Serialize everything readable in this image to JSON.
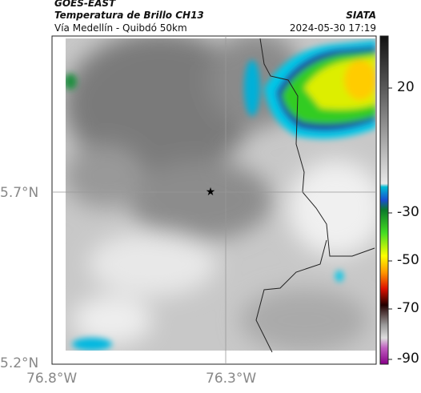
{
  "header": {
    "source": "GOES-EAST",
    "title": "Temperatura de Brillo CH13",
    "org": "SIATA",
    "route": "Vía Medellín - Quibdó 50km",
    "datetime": "2024-05-30 17:19"
  },
  "map": {
    "lat_labels": [
      "5.7°N",
      "5.2°N"
    ],
    "lon_labels": [
      "76.8°W",
      "76.3°W"
    ]
  },
  "colorbar": {
    "ticks": [
      "20",
      "-30",
      "-50",
      "-70",
      "-90"
    ]
  }
}
